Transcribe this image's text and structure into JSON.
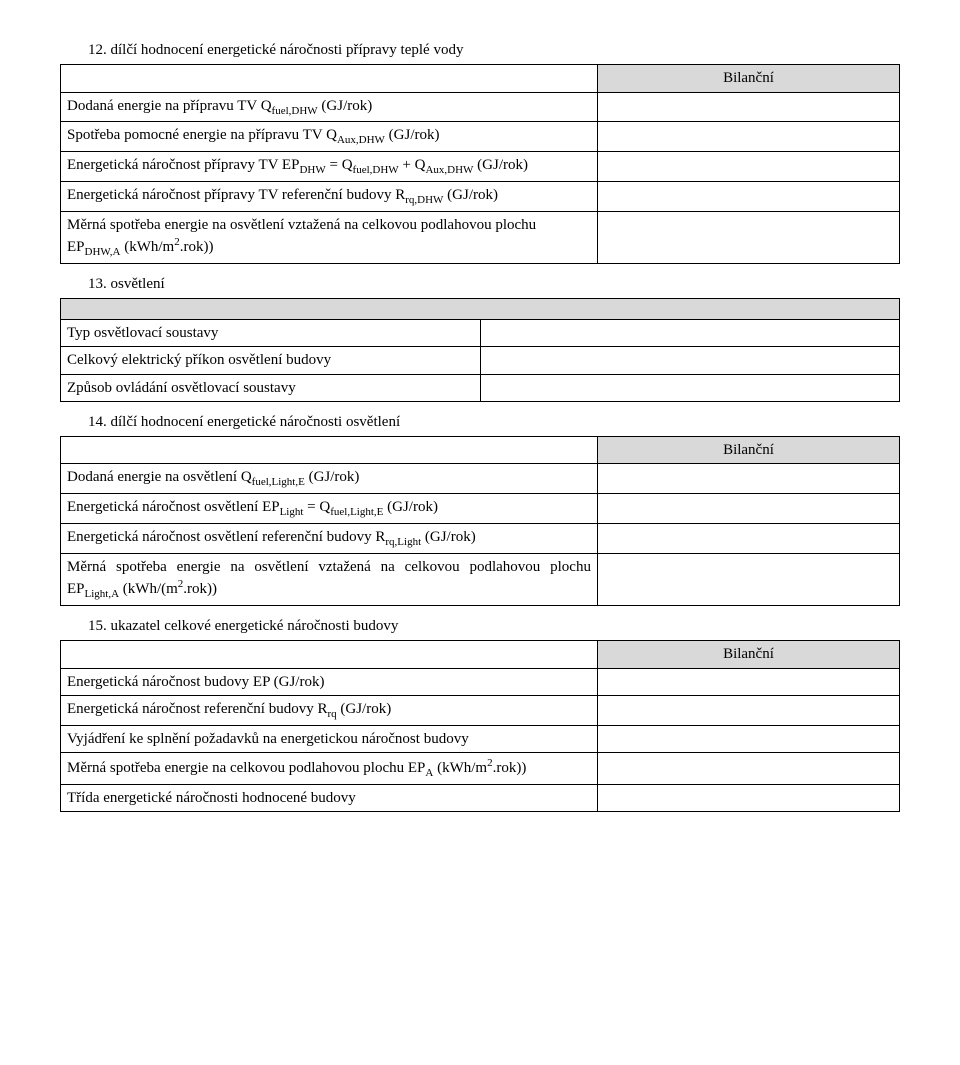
{
  "s12": {
    "title": "12. dílčí hodnocení energetické náročnosti přípravy teplé vody",
    "header": "Bilanční",
    "rows": [
      "Dodaná energie na přípravu TV Q<sub>fuel,DHW</sub> (GJ/rok)",
      "Spotřeba pomocné energie na přípravu TV Q<sub>Aux,DHW</sub> (GJ/rok)",
      "Energetická náročnost přípravy TV EP<sub>DHW</sub> = Q<sub>fuel,DHW</sub> + Q<sub>Aux,DHW</sub> (GJ/rok)",
      "Energetická náročnost přípravy TV referenční budovy R<sub>rq,DHW</sub> (GJ/rok)",
      "Měrná spotřeba energie na osvětlení vztažená na celkovou podlahovou plochu EP<sub>DHW,A</sub> (kWh/m<sup>2</sup>.rok))"
    ]
  },
  "s13": {
    "title": "13. osvětlení",
    "rows": [
      "Typ osvětlovací soustavy",
      "Celkový elektrický příkon osvětlení budovy",
      "Způsob ovládání osvětlovací soustavy"
    ]
  },
  "s14": {
    "title": "14. dílčí hodnocení energetické náročnosti osvětlení",
    "header": "Bilanční",
    "rows": [
      "Dodaná energie na osvětlení Q<sub>fuel,Light,E</sub> (GJ/rok)",
      "Energetická náročnost osvětlení EP<sub>Light</sub> = Q<sub>fuel,Light,E</sub> (GJ/rok)",
      "Energetická náročnost osvětlení referenční budovy R<sub>rq,Light</sub> (GJ/rok)",
      "Měrná spotřeba energie na osvětlení vztažená na celkovou podlahovou plochu EP<sub>Light,A</sub> (kWh/(m<sup>2</sup>.rok))"
    ]
  },
  "s15": {
    "title": "15. ukazatel celkové energetické náročnosti budovy",
    "header": "Bilanční",
    "rows": [
      "Energetická náročnost budovy EP (GJ/rok)",
      "Energetická náročnost referenční budovy R<sub>rq</sub> (GJ/rok)",
      "Vyjádření ke splnění požadavků na energetickou náročnost budovy",
      "Měrná spotřeba energie na celkovou podlahovou plochu EP<sub>A</sub> (kWh/m<sup>2</sup>.rok))",
      "Třída energetické náročnosti hodnocené budovy"
    ]
  }
}
